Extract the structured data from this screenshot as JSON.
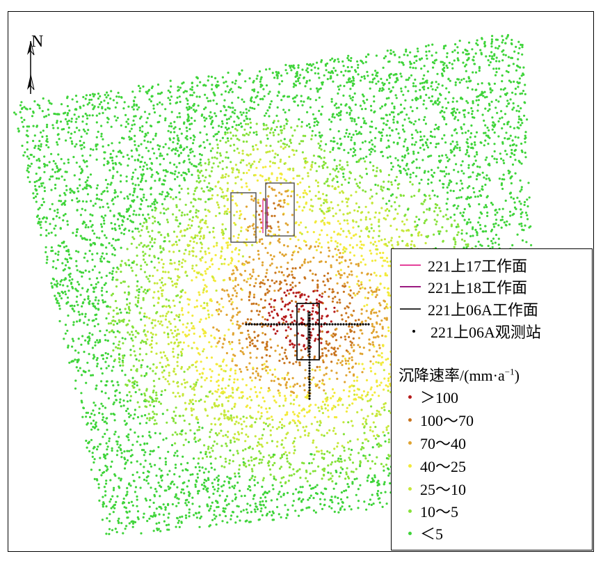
{
  "north_arrow": {
    "label": "N",
    "icon": "north-arrow-icon"
  },
  "legend": {
    "lines": [
      {
        "label": "221上17工作面",
        "color": "#e4409a"
      },
      {
        "label": "221上18工作面",
        "color": "#9a1a80"
      },
      {
        "label": "221上06A工作面",
        "color": "#333333"
      }
    ],
    "station": {
      "label": "221上06A观测站",
      "color": "#000000"
    },
    "title_main": "沉降速率/(mm·a",
    "title_sup": "−1",
    "title_close": ")",
    "classes": [
      {
        "label": "＞100",
        "color": "#b51a1a"
      },
      {
        "label": "100～70",
        "color": "#c8741e"
      },
      {
        "label": "70～40",
        "color": "#e0a432"
      },
      {
        "label": "40～25",
        "color": "#f2ea3a"
      },
      {
        "label": "25～10",
        "color": "#c6e83a"
      },
      {
        "label": "10～5",
        "color": "#86e23a"
      },
      {
        "label": "＜5",
        "color": "#3fd43a"
      }
    ]
  }
}
